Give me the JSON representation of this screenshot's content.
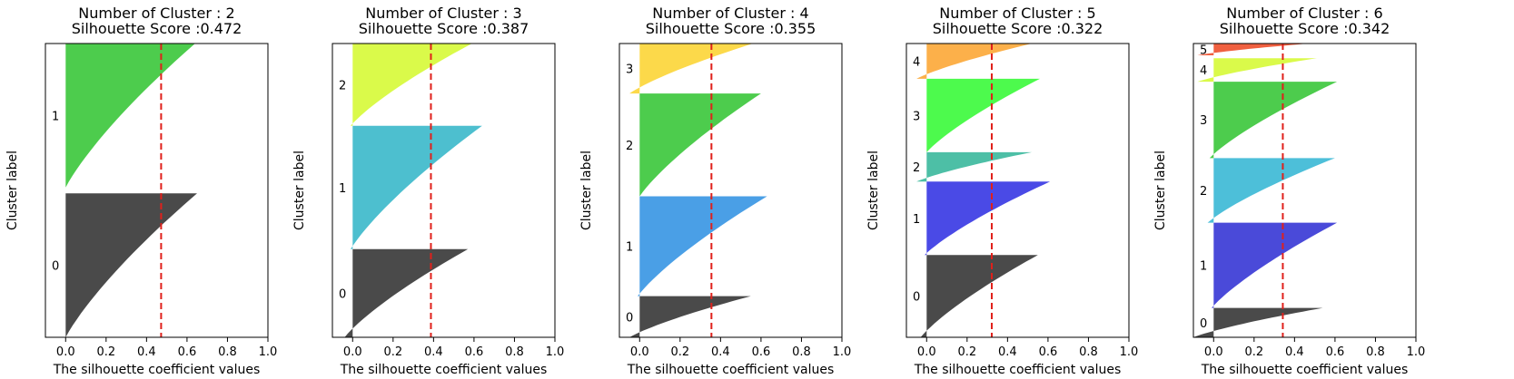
{
  "chart_data": [
    {
      "type": "area",
      "title": "Number of Cluster : 2",
      "subtitle": "Silhouette Score :0.472",
      "xlabel": "The silhouette coefficient values",
      "ylabel": "Cluster label",
      "xlim": [
        -0.1,
        1.0
      ],
      "xticks": [
        "0.0",
        "0.2",
        "0.4",
        "0.6",
        "0.8",
        "1.0"
      ],
      "score": 0.472,
      "clusters": [
        {
          "label": "0",
          "color": "#4a4a4a",
          "range": [
            0.0,
            0.49
          ],
          "min": 0.0,
          "max": 0.65
        },
        {
          "label": "1",
          "color": "#4dcc4d",
          "range": [
            0.51,
            1.0
          ],
          "min": 0.0,
          "max": 0.64
        }
      ]
    },
    {
      "type": "area",
      "title": "Number of Cluster : 3",
      "subtitle": "Silhouette Score :0.387",
      "xlabel": "The silhouette coefficient values",
      "ylabel": "Cluster label",
      "xlim": [
        -0.1,
        1.0
      ],
      "xticks": [
        "0.0",
        "0.2",
        "0.4",
        "0.6",
        "0.8",
        "1.0"
      ],
      "score": 0.387,
      "clusters": [
        {
          "label": "0",
          "color": "#4a4a4a",
          "range": [
            0.0,
            0.3
          ],
          "min": -0.04,
          "max": 0.57
        },
        {
          "label": "1",
          "color": "#4dbfcf",
          "range": [
            0.3,
            0.72
          ],
          "min": -0.01,
          "max": 0.64
        },
        {
          "label": "2",
          "color": "#dafa4a",
          "range": [
            0.72,
            1.0
          ],
          "min": -0.01,
          "max": 0.59
        }
      ]
    },
    {
      "type": "area",
      "title": "Number of Cluster : 4",
      "subtitle": "Silhouette Score :0.355",
      "xlabel": "The silhouette coefficient values",
      "ylabel": "Cluster label",
      "xlim": [
        -0.1,
        1.0
      ],
      "xticks": [
        "0.0",
        "0.2",
        "0.4",
        "0.6",
        "0.8",
        "1.0"
      ],
      "score": 0.355,
      "clusters": [
        {
          "label": "0",
          "color": "#4a4a4a",
          "range": [
            0.0,
            0.14
          ],
          "min": -0.05,
          "max": 0.55
        },
        {
          "label": "1",
          "color": "#4a9fe6",
          "range": [
            0.14,
            0.48
          ],
          "min": -0.01,
          "max": 0.63
        },
        {
          "label": "2",
          "color": "#4dcc4d",
          "range": [
            0.48,
            0.83
          ],
          "min": 0.0,
          "max": 0.6
        },
        {
          "label": "3",
          "color": "#fcd94a",
          "range": [
            0.83,
            1.0
          ],
          "min": -0.05,
          "max": 0.56
        }
      ]
    },
    {
      "type": "area",
      "title": "Number of Cluster : 5",
      "subtitle": "Silhouette Score :0.322",
      "xlabel": "The silhouette coefficient values",
      "ylabel": "Cluster label",
      "xlim": [
        -0.1,
        1.0
      ],
      "xticks": [
        "0.0",
        "0.2",
        "0.4",
        "0.6",
        "0.8",
        "1.0"
      ],
      "score": 0.322,
      "clusters": [
        {
          "label": "0",
          "color": "#4a4a4a",
          "range": [
            0.0,
            0.28
          ],
          "min": -0.03,
          "max": 0.55
        },
        {
          "label": "1",
          "color": "#4a4ae6",
          "range": [
            0.28,
            0.53
          ],
          "min": -0.01,
          "max": 0.61
        },
        {
          "label": "2",
          "color": "#4dbfa6",
          "range": [
            0.53,
            0.63
          ],
          "min": -0.05,
          "max": 0.52
        },
        {
          "label": "3",
          "color": "#4dfa4d",
          "range": [
            0.63,
            0.88
          ],
          "min": 0.0,
          "max": 0.56
        },
        {
          "label": "4",
          "color": "#fcb04a",
          "range": [
            0.88,
            1.0
          ],
          "min": -0.05,
          "max": 0.52
        }
      ]
    },
    {
      "type": "area",
      "title": "Number of Cluster : 6",
      "subtitle": "Silhouette Score :0.342",
      "xlabel": "The silhouette coefficient values",
      "ylabel": "Cluster label",
      "xlim": [
        -0.1,
        1.0
      ],
      "xticks": [
        "0.0",
        "0.2",
        "0.4",
        "0.6",
        "0.8",
        "1.0"
      ],
      "score": 0.342,
      "clusters": [
        {
          "label": "0",
          "color": "#4a4a4a",
          "range": [
            0.0,
            0.1
          ],
          "min": -0.1,
          "max": 0.54
        },
        {
          "label": "1",
          "color": "#4a4ad9",
          "range": [
            0.1,
            0.39
          ],
          "min": -0.01,
          "max": 0.61
        },
        {
          "label": "2",
          "color": "#4dbfd9",
          "range": [
            0.39,
            0.61
          ],
          "min": -0.03,
          "max": 0.6
        },
        {
          "label": "3",
          "color": "#4dcc4d",
          "range": [
            0.61,
            0.87
          ],
          "min": -0.02,
          "max": 0.61
        },
        {
          "label": "4",
          "color": "#dafa4a",
          "range": [
            0.87,
            0.95
          ],
          "min": -0.08,
          "max": 0.51
        },
        {
          "label": "5",
          "color": "#f06040",
          "range": [
            0.96,
            1.0
          ],
          "min": -0.08,
          "max": 0.47
        }
      ]
    }
  ]
}
